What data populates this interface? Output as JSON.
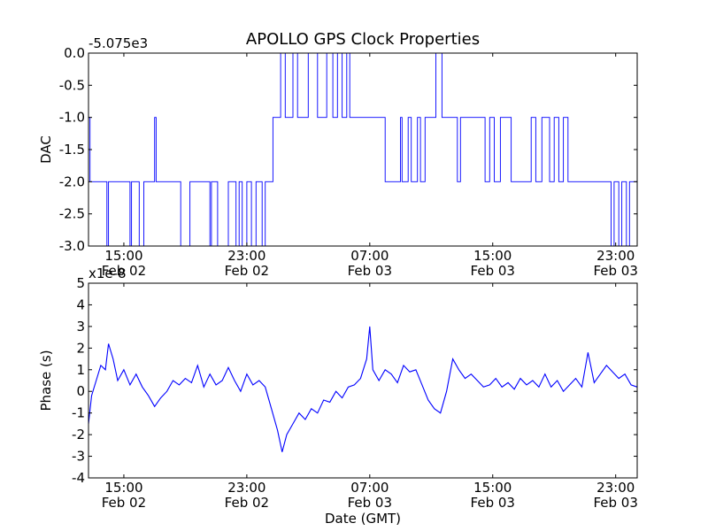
{
  "figure": {
    "title": "APOLLO GPS Clock Properties",
    "xlabel": "Date (GMT)"
  },
  "x_ticks": [
    {
      "hour": 15,
      "time": "15:00",
      "date": "Feb 02"
    },
    {
      "hour": 23,
      "time": "23:00",
      "date": "Feb 02"
    },
    {
      "hour": 31,
      "time": "07:00",
      "date": "Feb 03"
    },
    {
      "hour": 39,
      "time": "15:00",
      "date": "Feb 03"
    },
    {
      "hour": 47,
      "time": "23:00",
      "date": "Feb 03"
    }
  ],
  "x_range_hours": [
    12.7,
    48.4
  ],
  "x_hours_note": "hours since 00:00 Feb 02",
  "chart_data": [
    {
      "type": "line",
      "ylabel": "DAC",
      "offset_label": "-5.075e3",
      "ylim": [
        -3.0,
        0.0
      ],
      "yticks": [
        "-3.0",
        "-2.5",
        "-2.0",
        "-1.5",
        "-1.0",
        "-0.5",
        "0.0"
      ],
      "color": "#0000ff",
      "series": [
        {
          "name": "DAC",
          "x_hours": [
            12.7,
            12.8,
            12.9,
            13.1,
            13.9,
            14.0,
            14.6,
            15.4,
            15.5,
            16.0,
            16.3,
            16.5,
            16.9,
            17.0,
            17.1,
            17.2,
            17.3,
            18.6,
            18.7,
            19.3,
            19.6,
            20.6,
            20.7,
            21.1,
            21.8,
            22.3,
            22.5,
            22.7,
            23.0,
            23.3,
            23.6,
            24.0,
            24.2,
            24.4,
            24.7,
            25.0,
            25.2,
            25.5,
            26.0,
            26.3,
            27.0,
            27.6,
            28.2,
            28.6,
            28.9,
            29.2,
            29.5,
            29.7,
            30.0,
            30.3,
            30.6,
            30.9,
            31.1,
            31.4,
            32.0,
            33.0,
            33.1,
            33.5,
            33.7,
            34.1,
            34.3,
            34.6,
            35.1,
            35.3,
            35.7,
            36.0,
            36.5,
            36.7,
            36.9,
            37.2,
            38.0,
            38.5,
            38.8,
            39.1,
            39.5,
            39.8,
            40.2,
            41.5,
            41.8,
            42.2,
            42.4,
            42.7,
            43.0,
            43.3,
            43.6,
            43.9,
            44.2,
            45.0,
            46.0,
            46.7,
            46.9,
            47.2,
            47.4,
            47.7,
            47.9,
            48.2,
            48.4
          ],
          "values": [
            -1.0,
            -2.0,
            -2.0,
            -2.0,
            -3.0,
            -2.0,
            -2.0,
            -3.0,
            -2.0,
            -3.0,
            -2.0,
            -2.0,
            -2.0,
            -1.0,
            -2.0,
            -2.0,
            -2.0,
            -2.0,
            -3.0,
            -2.0,
            -2.0,
            -3.0,
            -2.0,
            -3.0,
            -2.0,
            -3.0,
            -2.0,
            -3.0,
            -2.0,
            -3.0,
            -2.0,
            -3.0,
            -2.0,
            -2.0,
            -1.0,
            -1.0,
            0.0,
            -1.0,
            0.0,
            -1.0,
            0.0,
            -1.0,
            0.0,
            -1.0,
            0.0,
            -1.0,
            0.0,
            -1.0,
            -1.0,
            -1.0,
            -1.0,
            -1.0,
            -1.0,
            -1.0,
            -2.0,
            -1.0,
            -2.0,
            -1.0,
            -2.0,
            -1.0,
            -2.0,
            -1.0,
            -1.0,
            0.0,
            -1.0,
            -1.0,
            -1.0,
            -2.0,
            -1.0,
            -1.0,
            -1.0,
            -2.0,
            -1.0,
            -2.0,
            -1.0,
            -1.0,
            -2.0,
            -1.0,
            -2.0,
            -1.0,
            -1.0,
            -2.0,
            -1.0,
            -2.0,
            -1.0,
            -2.0,
            -2.0,
            -2.0,
            -2.0,
            -3.0,
            -2.0,
            -3.0,
            -2.0,
            -3.0,
            -2.0,
            -2.0,
            -2.0
          ]
        }
      ]
    },
    {
      "type": "line",
      "ylabel": "Phase (s)",
      "offset_label": "x1e-8",
      "ylim": [
        -4,
        5
      ],
      "yticks": [
        "-4",
        "-3",
        "-2",
        "-1",
        "0",
        "1",
        "2",
        "3",
        "4",
        "5"
      ],
      "color": "#0000ff",
      "series": [
        {
          "name": "Phase",
          "x_hours": [
            12.7,
            12.9,
            13.2,
            13.5,
            13.8,
            14.0,
            14.3,
            14.6,
            15.0,
            15.4,
            15.8,
            16.2,
            16.6,
            17.0,
            17.4,
            17.8,
            18.2,
            18.6,
            19.0,
            19.4,
            19.8,
            20.2,
            20.6,
            21.0,
            21.4,
            21.8,
            22.2,
            22.6,
            23.0,
            23.4,
            23.8,
            24.2,
            24.6,
            25.0,
            25.3,
            25.6,
            26.0,
            26.4,
            26.8,
            27.2,
            27.6,
            28.0,
            28.4,
            28.8,
            29.2,
            29.6,
            30.0,
            30.4,
            30.8,
            31.0,
            31.2,
            31.6,
            32.0,
            32.4,
            32.8,
            33.2,
            33.6,
            34.0,
            34.4,
            34.8,
            35.2,
            35.6,
            36.0,
            36.4,
            36.8,
            37.2,
            37.6,
            38.0,
            38.4,
            38.8,
            39.2,
            39.6,
            40.0,
            40.4,
            40.8,
            41.2,
            41.6,
            42.0,
            42.4,
            42.8,
            43.2,
            43.6,
            44.0,
            44.4,
            44.8,
            45.2,
            45.6,
            46.0,
            46.4,
            46.8,
            47.2,
            47.6,
            48.0,
            48.4
          ],
          "values": [
            -1.5,
            -0.2,
            0.5,
            1.2,
            1.0,
            2.2,
            1.5,
            0.5,
            1.0,
            0.3,
            0.8,
            0.2,
            -0.2,
            -0.7,
            -0.3,
            0.0,
            0.5,
            0.3,
            0.6,
            0.4,
            1.2,
            0.2,
            0.8,
            0.3,
            0.5,
            1.1,
            0.5,
            0.0,
            0.8,
            0.3,
            0.5,
            0.2,
            -0.8,
            -1.8,
            -2.8,
            -2.0,
            -1.5,
            -1.0,
            -1.3,
            -0.8,
            -1.0,
            -0.4,
            -0.5,
            0.0,
            -0.3,
            0.2,
            0.3,
            0.6,
            1.5,
            3.0,
            1.0,
            0.5,
            1.0,
            0.8,
            0.4,
            1.2,
            0.9,
            1.0,
            0.3,
            -0.4,
            -0.8,
            -1.0,
            0.0,
            1.5,
            1.0,
            0.6,
            0.8,
            0.5,
            0.2,
            0.3,
            0.6,
            0.2,
            0.4,
            0.1,
            0.6,
            0.3,
            0.5,
            0.2,
            0.8,
            0.2,
            0.5,
            0.0,
            0.3,
            0.6,
            0.2,
            1.8,
            0.4,
            0.8,
            1.2,
            0.9,
            0.6,
            0.8,
            0.3,
            0.2
          ]
        }
      ]
    }
  ]
}
